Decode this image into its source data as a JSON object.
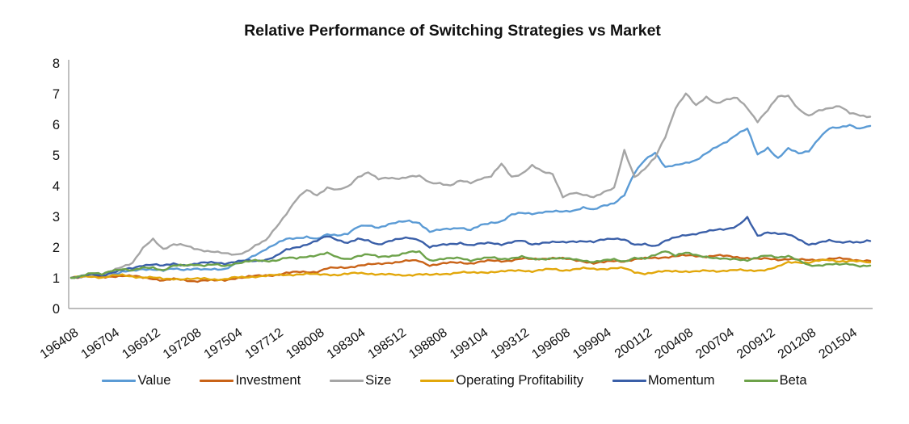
{
  "chart_data": {
    "type": "line",
    "title": "Relative Performance of Switching Strategies vs Market",
    "grid": false,
    "legend_position": "bottom",
    "ylim": [
      0,
      8
    ],
    "y_ticks": [
      0,
      1,
      2,
      3,
      4,
      5,
      6,
      7,
      8
    ],
    "x_tick_labels": [
      "196408",
      "196704",
      "196912",
      "197208",
      "197504",
      "197712",
      "198008",
      "198304",
      "198512",
      "198808",
      "199104",
      "199312",
      "199608",
      "199904",
      "200112",
      "200408",
      "200704",
      "200912",
      "201208",
      "201504"
    ],
    "x": [
      "196408",
      "196504",
      "196512",
      "196608",
      "196704",
      "196712",
      "196808",
      "196904",
      "196912",
      "197008",
      "197104",
      "197112",
      "197208",
      "197304",
      "197312",
      "197408",
      "197504",
      "197512",
      "197608",
      "197704",
      "197712",
      "197808",
      "197904",
      "197912",
      "198008",
      "198104",
      "198112",
      "198208",
      "198304",
      "198312",
      "198408",
      "198504",
      "198512",
      "198608",
      "198704",
      "198712",
      "198808",
      "198904",
      "198912",
      "199008",
      "199104",
      "199112",
      "199208",
      "199304",
      "199312",
      "199408",
      "199504",
      "199512",
      "199608",
      "199704",
      "199712",
      "199808",
      "199904",
      "199912",
      "200008",
      "200104",
      "200112",
      "200208",
      "200304",
      "200312",
      "200408",
      "200504",
      "200512",
      "200608",
      "200704",
      "200712",
      "200808",
      "200904",
      "200912",
      "201008",
      "201104",
      "201112",
      "201208",
      "201304",
      "201312",
      "201408",
      "201504",
      "201512",
      "201608"
    ],
    "series": [
      {
        "name": "Value",
        "color": "#5B9BD5",
        "values": [
          1.0,
          1.02,
          1.05,
          1.03,
          1.1,
          1.18,
          1.22,
          1.3,
          1.28,
          1.22,
          1.3,
          1.28,
          1.3,
          1.25,
          1.28,
          1.3,
          1.45,
          1.55,
          1.75,
          1.95,
          2.1,
          2.25,
          2.3,
          2.35,
          2.25,
          2.4,
          2.4,
          2.45,
          2.65,
          2.7,
          2.65,
          2.75,
          2.8,
          2.85,
          2.8,
          2.5,
          2.55,
          2.6,
          2.65,
          2.55,
          2.7,
          2.8,
          2.85,
          3.05,
          3.1,
          3.1,
          3.15,
          3.15,
          3.15,
          3.2,
          3.3,
          3.2,
          3.35,
          3.45,
          3.7,
          4.4,
          4.85,
          5.1,
          4.6,
          4.65,
          4.75,
          4.85,
          5.05,
          5.25,
          5.45,
          5.7,
          5.85,
          5.0,
          5.25,
          4.9,
          5.2,
          5.05,
          5.15,
          5.55,
          5.85,
          5.9,
          6.0,
          5.85,
          5.95
        ]
      },
      {
        "name": "Investment",
        "color": "#C96318",
        "values": [
          1.0,
          1.05,
          1.08,
          1.0,
          1.05,
          1.08,
          1.05,
          1.0,
          0.98,
          0.92,
          0.95,
          0.92,
          0.9,
          0.92,
          0.9,
          0.92,
          1.0,
          1.02,
          1.05,
          1.08,
          1.1,
          1.15,
          1.18,
          1.2,
          1.2,
          1.3,
          1.32,
          1.35,
          1.4,
          1.42,
          1.45,
          1.5,
          1.52,
          1.55,
          1.55,
          1.42,
          1.45,
          1.48,
          1.5,
          1.48,
          1.52,
          1.55,
          1.55,
          1.58,
          1.62,
          1.6,
          1.63,
          1.65,
          1.62,
          1.58,
          1.55,
          1.48,
          1.5,
          1.55,
          1.55,
          1.6,
          1.62,
          1.65,
          1.68,
          1.7,
          1.72,
          1.72,
          1.7,
          1.72,
          1.7,
          1.68,
          1.65,
          1.6,
          1.62,
          1.6,
          1.62,
          1.58,
          1.58,
          1.6,
          1.62,
          1.62,
          1.6,
          1.58,
          1.55
        ]
      },
      {
        "name": "Size",
        "color": "#A5A5A5",
        "values": [
          1.0,
          1.05,
          1.12,
          1.08,
          1.22,
          1.38,
          1.5,
          1.95,
          2.25,
          1.95,
          2.1,
          2.05,
          1.95,
          1.9,
          1.85,
          1.78,
          1.75,
          1.85,
          2.05,
          2.2,
          2.65,
          3.1,
          3.55,
          3.85,
          3.7,
          3.95,
          3.85,
          3.95,
          4.3,
          4.45,
          4.2,
          4.25,
          4.25,
          4.3,
          4.3,
          4.1,
          4.1,
          4.0,
          4.15,
          4.1,
          4.25,
          4.3,
          4.7,
          4.3,
          4.4,
          4.65,
          4.45,
          4.4,
          3.65,
          3.75,
          3.7,
          3.65,
          3.8,
          3.9,
          5.15,
          4.3,
          4.55,
          4.9,
          5.6,
          6.55,
          7.0,
          6.6,
          6.9,
          6.7,
          6.8,
          6.85,
          6.55,
          6.1,
          6.45,
          6.9,
          6.95,
          6.5,
          6.25,
          6.45,
          6.55,
          6.6,
          6.35,
          6.3,
          6.25
        ]
      },
      {
        "name": "Operating Profitability",
        "color": "#E2A70B",
        "values": [
          1.0,
          1.02,
          1.05,
          1.02,
          1.06,
          1.08,
          1.05,
          1.02,
          1.0,
          0.96,
          0.98,
          0.96,
          0.95,
          0.98,
          0.96,
          0.95,
          1.0,
          1.02,
          1.05,
          1.06,
          1.08,
          1.1,
          1.12,
          1.12,
          1.1,
          1.12,
          1.1,
          1.12,
          1.15,
          1.15,
          1.12,
          1.1,
          1.08,
          1.1,
          1.12,
          1.08,
          1.12,
          1.15,
          1.18,
          1.15,
          1.18,
          1.2,
          1.2,
          1.22,
          1.25,
          1.22,
          1.25,
          1.28,
          1.25,
          1.28,
          1.3,
          1.28,
          1.3,
          1.32,
          1.3,
          1.18,
          1.15,
          1.18,
          1.2,
          1.22,
          1.22,
          1.2,
          1.22,
          1.22,
          1.25,
          1.25,
          1.22,
          1.25,
          1.28,
          1.35,
          1.5,
          1.52,
          1.5,
          1.55,
          1.58,
          1.55,
          1.55,
          1.52,
          1.5
        ]
      },
      {
        "name": "Momentum",
        "color": "#3A5FA8",
        "values": [
          1.0,
          1.05,
          1.1,
          1.08,
          1.18,
          1.25,
          1.3,
          1.42,
          1.45,
          1.38,
          1.45,
          1.42,
          1.45,
          1.48,
          1.5,
          1.48,
          1.52,
          1.55,
          1.55,
          1.6,
          1.7,
          1.9,
          2.0,
          2.1,
          2.2,
          2.35,
          2.25,
          2.15,
          2.25,
          2.2,
          2.1,
          2.2,
          2.25,
          2.3,
          2.25,
          2.0,
          2.05,
          2.1,
          2.15,
          2.05,
          2.1,
          2.15,
          2.1,
          2.15,
          2.2,
          2.1,
          2.15,
          2.15,
          2.15,
          2.2,
          2.2,
          2.15,
          2.25,
          2.3,
          2.25,
          2.05,
          2.1,
          2.05,
          2.2,
          2.3,
          2.4,
          2.45,
          2.5,
          2.55,
          2.6,
          2.7,
          2.95,
          2.35,
          2.5,
          2.45,
          2.4,
          2.25,
          2.1,
          2.15,
          2.2,
          2.15,
          2.2,
          2.15,
          2.2
        ]
      },
      {
        "name": "Beta",
        "color": "#6DA24A",
        "values": [
          1.0,
          1.08,
          1.15,
          1.1,
          1.25,
          1.3,
          1.22,
          1.32,
          1.35,
          1.25,
          1.38,
          1.4,
          1.45,
          1.4,
          1.42,
          1.38,
          1.48,
          1.52,
          1.55,
          1.55,
          1.58,
          1.65,
          1.62,
          1.7,
          1.75,
          1.8,
          1.65,
          1.62,
          1.72,
          1.75,
          1.68,
          1.72,
          1.75,
          1.82,
          1.85,
          1.58,
          1.6,
          1.62,
          1.65,
          1.58,
          1.62,
          1.65,
          1.62,
          1.65,
          1.68,
          1.6,
          1.62,
          1.65,
          1.62,
          1.6,
          1.58,
          1.52,
          1.55,
          1.6,
          1.55,
          1.65,
          1.6,
          1.75,
          1.9,
          1.72,
          1.8,
          1.75,
          1.7,
          1.62,
          1.6,
          1.62,
          1.58,
          1.65,
          1.72,
          1.68,
          1.72,
          1.55,
          1.4,
          1.42,
          1.45,
          1.42,
          1.45,
          1.4,
          1.4
        ]
      }
    ],
    "axis_color": "#A6A6A6",
    "text_color": "#111111"
  }
}
